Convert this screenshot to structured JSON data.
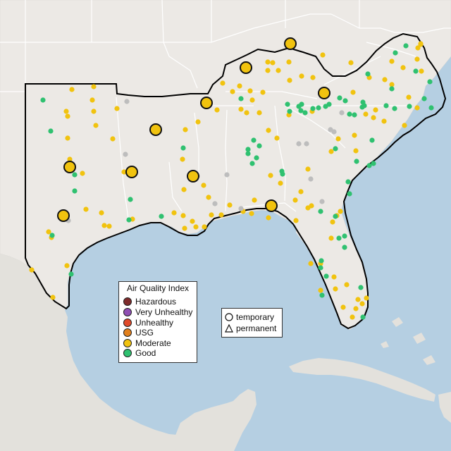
{
  "legend": {
    "title": "Air Quality Index",
    "items": [
      {
        "label": "Hazardous",
        "color": "#7e2b2b"
      },
      {
        "label": "Very Unhealthy",
        "color": "#8f4fb3"
      },
      {
        "label": "Unhealthy",
        "color": "#e04a2a"
      },
      {
        "label": "USG",
        "color": "#e2801c"
      },
      {
        "label": "Moderate",
        "color": "#f1c30f"
      },
      {
        "label": "Good",
        "color": "#2fc170"
      }
    ]
  },
  "monitor_types": {
    "items": [
      {
        "label": "temporary",
        "shape": "circle-icon"
      },
      {
        "label": "permanent",
        "shape": "triangle-icon"
      }
    ]
  },
  "colors": {
    "ocean": "#b5cfe2",
    "land": "#ece9e5",
    "land_outside": "#e3e1dc",
    "border": "#ffffff",
    "region_outline": "#000000",
    "unknown_monitor": "#bdbdbd"
  }
}
